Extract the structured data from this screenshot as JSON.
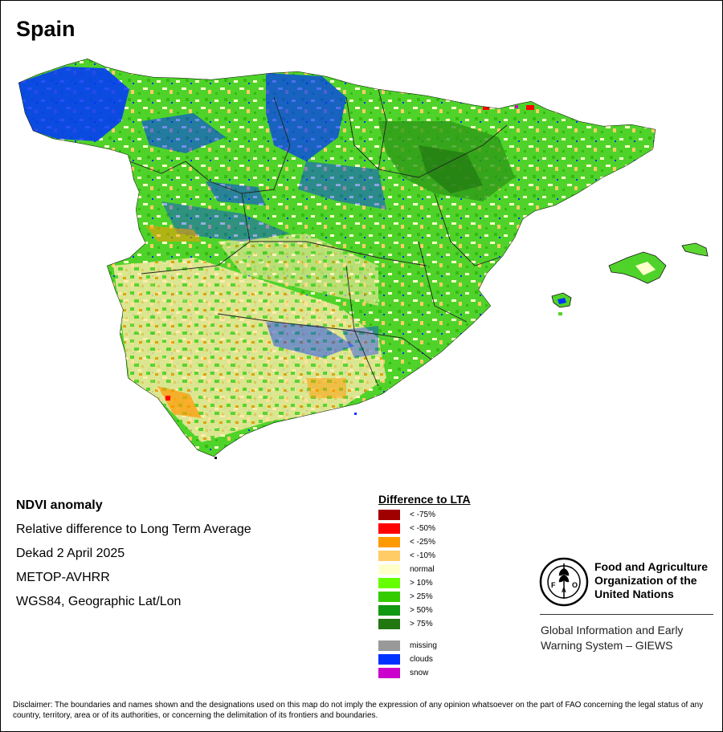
{
  "title": "Spain",
  "info": {
    "line1": "NDVI anomaly",
    "line2": "Relative difference to Long Term Average",
    "line3": "Dekad 2 April 2025",
    "line4": "METOP-AVHRR",
    "line5": "WGS84, Geographic Lat/Lon"
  },
  "legend": {
    "title": "Difference to LTA",
    "items": [
      {
        "label": "< -75%",
        "color": "#a00000"
      },
      {
        "label": "< -50%",
        "color": "#ff0000"
      },
      {
        "label": "< -25%",
        "color": "#ff9900"
      },
      {
        "label": "< -10%",
        "color": "#ffcc66"
      },
      {
        "label": "normal",
        "color": "#ffffcc"
      },
      {
        "label": "> 10%",
        "color": "#66ff00"
      },
      {
        "label": "> 25%",
        "color": "#33cc00"
      },
      {
        "label": "> 50%",
        "color": "#119911"
      },
      {
        "label": "> 75%",
        "color": "#227711"
      },
      {
        "label": "missing",
        "color": "#999999"
      },
      {
        "label": "clouds",
        "color": "#0033ff"
      },
      {
        "label": "snow",
        "color": "#cc00cc"
      }
    ]
  },
  "org": {
    "name_line1": "Food and Agriculture",
    "name_line2": "Organization of the",
    "name_line3": "United Nations",
    "logo_text": "FAO",
    "logo_motto": "FIAT PANIS",
    "system_line1": "Global Information and Early",
    "system_line2": "Warning System – GIEWS"
  },
  "disclaimer": "Disclaimer: The boundaries and names shown and the designations used on this map do not imply the expression of any opinion whatsoever on the part of FAO concerning the legal status of any country, territory, area or of its authorities, or concerning the delimitation of its frontiers and boundaries."
}
